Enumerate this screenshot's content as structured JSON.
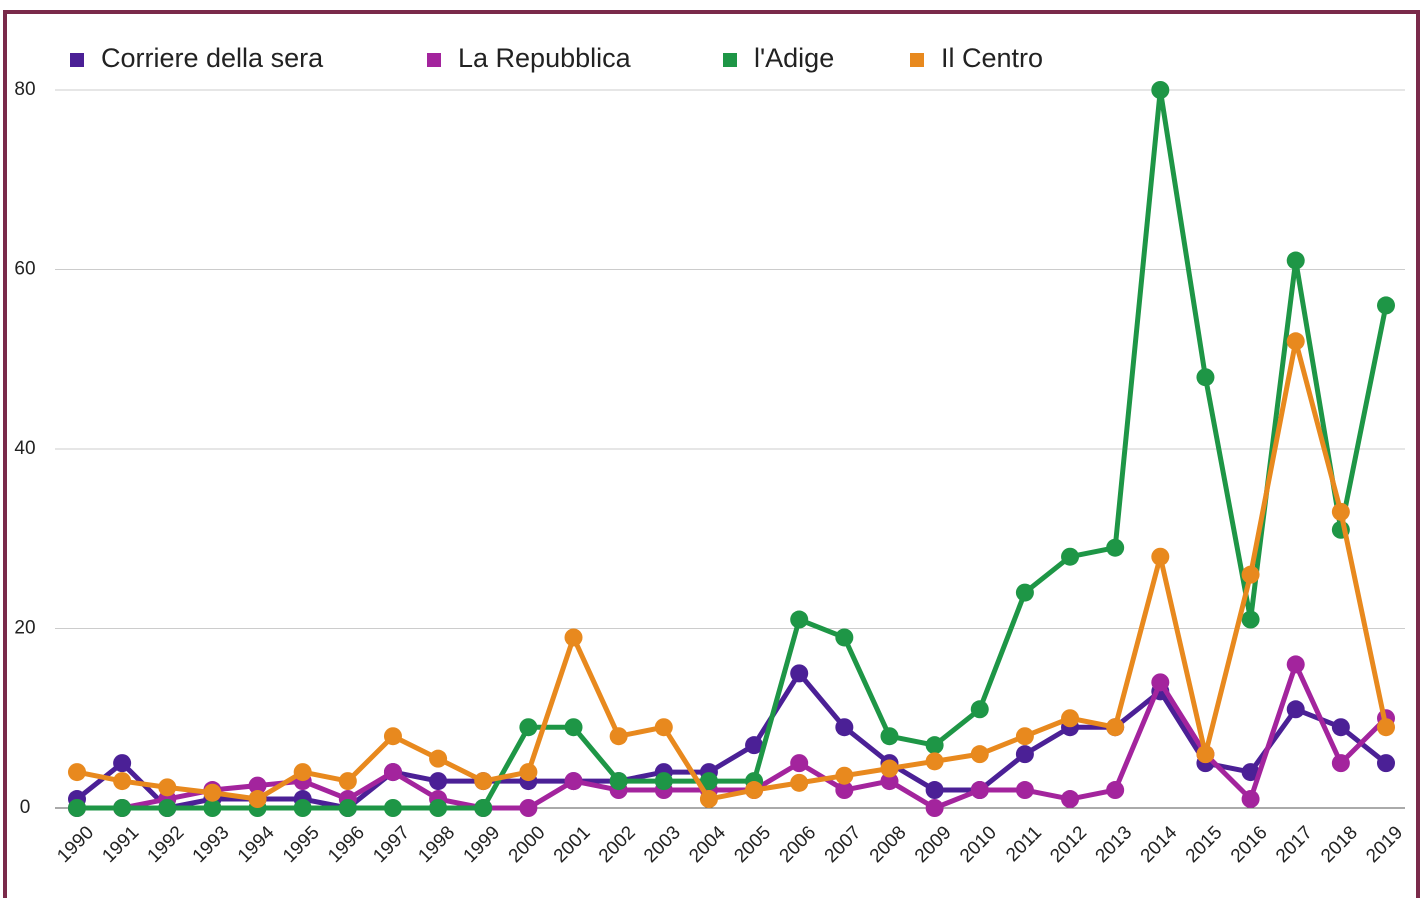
{
  "chart_data": {
    "type": "line",
    "x": [
      1990,
      1991,
      1992,
      1993,
      1994,
      1995,
      1996,
      1997,
      1998,
      1999,
      2000,
      2001,
      2002,
      2003,
      2004,
      2005,
      2006,
      2007,
      2008,
      2009,
      2010,
      2011,
      2012,
      2013,
      2014,
      2015,
      2016,
      2017,
      2018,
      2019
    ],
    "series": [
      {
        "name": "Corriere della sera",
        "color": "#4b2096",
        "values": [
          1,
          5,
          0,
          1,
          1,
          1,
          0,
          4,
          3,
          3,
          3,
          3,
          3,
          4,
          4,
          7,
          15,
          9,
          5,
          2,
          2,
          6,
          9,
          9,
          13,
          5,
          4,
          11,
          9,
          5
        ]
      },
      {
        "name": "La Repubblica",
        "color": "#a3249d",
        "values": [
          0,
          0,
          1,
          2,
          2.5,
          3,
          1,
          4,
          1,
          0,
          0,
          3,
          2,
          2,
          2,
          2,
          5,
          2,
          3,
          0,
          2,
          2,
          1,
          2,
          14,
          6,
          1,
          16,
          5,
          10
        ]
      },
      {
        "name": "l'Adige",
        "color": "#1e9646",
        "values": [
          0,
          0,
          0,
          0,
          0,
          0,
          0,
          0,
          0,
          0,
          9,
          9,
          3,
          3,
          3,
          3,
          21,
          19,
          8,
          7,
          11,
          24,
          28,
          29,
          80,
          48,
          21,
          61,
          31,
          56
        ]
      },
      {
        "name": "Il Centro",
        "color": "#e8891e",
        "values": [
          4,
          3,
          2.3,
          1.7,
          1,
          4,
          3,
          8,
          5.5,
          3,
          4,
          19,
          8,
          9,
          1,
          2,
          2.8,
          3.6,
          4.4,
          5.2,
          6,
          8,
          10,
          9,
          28,
          6,
          26,
          52,
          33,
          9
        ]
      }
    ],
    "xlim": [
      1990,
      2019
    ],
    "ylim": [
      0,
      80
    ],
    "yticks": [
      0,
      20,
      40,
      60,
      80
    ],
    "grid": true,
    "legend": "top"
  }
}
